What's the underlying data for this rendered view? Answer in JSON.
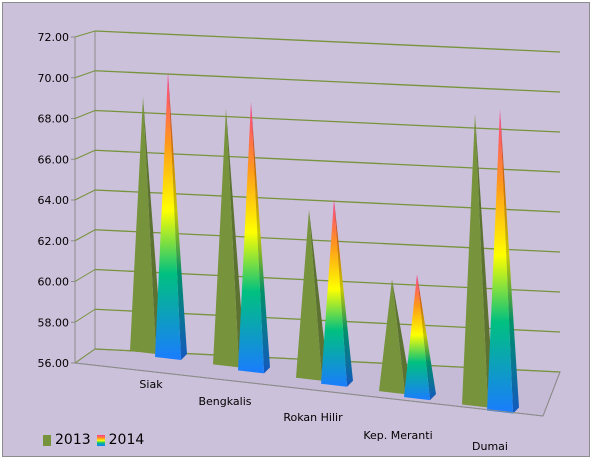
{
  "chart_data": {
    "type": "bar",
    "categories": [
      "Siak",
      "Bengkalis",
      "Rokan Hilir",
      "Kep. Meranti",
      "Dumai"
    ],
    "series": [
      {
        "name": "2013",
        "values": [
          69.9,
          69.5,
          64.6,
          61.3,
          69.8
        ],
        "color": "#77933c"
      },
      {
        "name": "2014",
        "values": [
          71.2,
          69.9,
          65.2,
          61.6,
          70.1
        ],
        "color": "gradient"
      }
    ],
    "ylim": [
      56,
      72
    ],
    "yticks": [
      "56.00",
      "58.00",
      "60.00",
      "62.00",
      "64.00",
      "66.00",
      "68.00",
      "70.00",
      "72.00"
    ],
    "grid": true,
    "legend": "bottom-left",
    "background": "#ccc1da",
    "gridline_color": "#77933c"
  }
}
